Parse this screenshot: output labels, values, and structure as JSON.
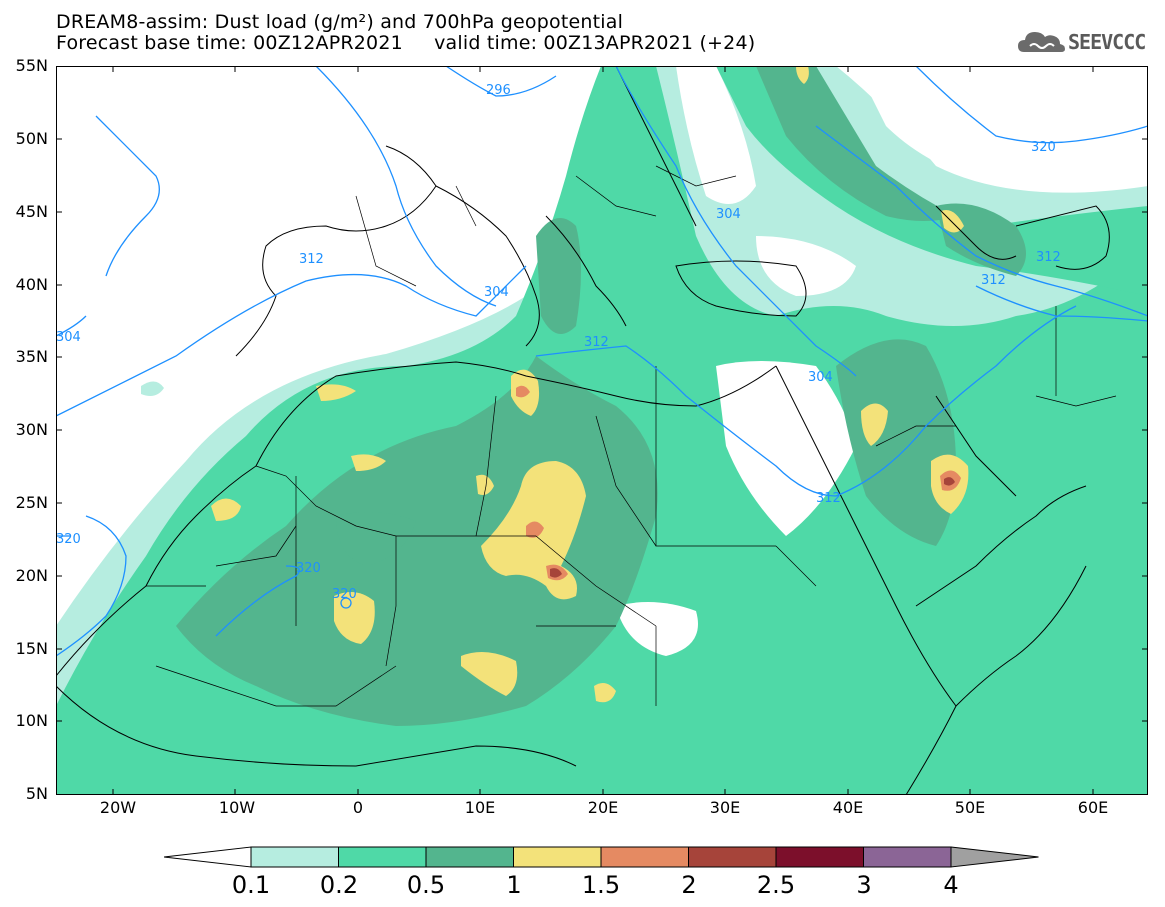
{
  "header": {
    "title_line1": "DREAM8-assim: Dust load (g/m²) and 700hPa geopotential",
    "title_line2": "Forecast base time: 00Z12APR2021     valid time: 00Z13APR2021 (+24)",
    "logo_text": "SEEVCCC"
  },
  "map": {
    "lat_labels": [
      "55N",
      "50N",
      "45N",
      "40N",
      "35N",
      "30N",
      "25N",
      "20N",
      "15N",
      "10N",
      "5N"
    ],
    "lon_labels": [
      "20W",
      "10W",
      "0",
      "10E",
      "20E",
      "30E",
      "40E",
      "50E",
      "60E"
    ],
    "contour_labels": [
      "296",
      "320",
      "304",
      "312",
      "304",
      "312",
      "312",
      "312",
      "304",
      "312",
      "304",
      "320",
      "320",
      "320"
    ]
  },
  "legend": {
    "levels": [
      "0.1",
      "0.2",
      "0.5",
      "1",
      "1.5",
      "2",
      "2.5",
      "3",
      "4"
    ],
    "colors": [
      "#ffffff",
      "#b6ede0",
      "#4fd9a7",
      "#53b58e",
      "#f3e27a",
      "#e58a62",
      "#a6443a",
      "#7c0f2b",
      "#8b6596",
      "#a0a0a0"
    ]
  }
}
